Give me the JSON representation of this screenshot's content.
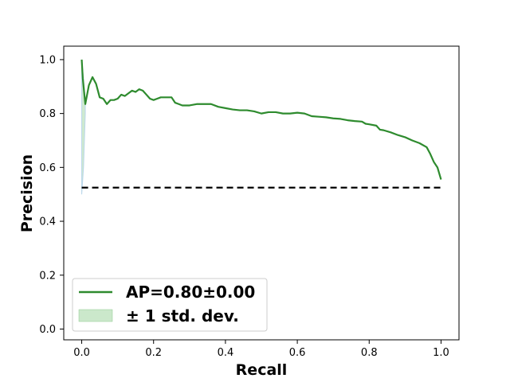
{
  "chart_data": {
    "type": "line",
    "title": "",
    "xlabel": "Recall",
    "ylabel": "Precision",
    "xlim": [
      -0.05,
      1.05
    ],
    "ylim": [
      -0.04,
      1.05
    ],
    "xticks": [
      0.0,
      0.2,
      0.4,
      0.6,
      0.8,
      1.0
    ],
    "xtick_labels": [
      "0.0",
      "0.2",
      "0.4",
      "0.6",
      "0.8",
      "1.0"
    ],
    "yticks": [
      0.0,
      0.2,
      0.4,
      0.6,
      0.8,
      1.0
    ],
    "ytick_labels": [
      "0.0",
      "0.2",
      "0.4",
      "0.6",
      "0.8",
      "1.0"
    ],
    "grid": false,
    "legend": {
      "placement": "lower-left",
      "entries": [
        "AP=0.80±0.00",
        "± 1 std. dev."
      ]
    },
    "series": [
      {
        "name": "AP=0.80±0.00",
        "color": "#2e8b2e",
        "x": [
          0.0,
          0.003,
          0.01,
          0.02,
          0.03,
          0.04,
          0.05,
          0.06,
          0.07,
          0.08,
          0.09,
          0.1,
          0.11,
          0.12,
          0.13,
          0.14,
          0.15,
          0.16,
          0.17,
          0.18,
          0.19,
          0.2,
          0.21,
          0.22,
          0.23,
          0.24,
          0.25,
          0.26,
          0.27,
          0.28,
          0.3,
          0.32,
          0.34,
          0.36,
          0.38,
          0.4,
          0.42,
          0.44,
          0.46,
          0.48,
          0.5,
          0.52,
          0.54,
          0.56,
          0.58,
          0.6,
          0.62,
          0.64,
          0.66,
          0.68,
          0.7,
          0.72,
          0.74,
          0.76,
          0.78,
          0.79,
          0.8,
          0.82,
          0.83,
          0.84,
          0.86,
          0.88,
          0.9,
          0.92,
          0.94,
          0.96,
          0.97,
          0.98,
          0.99,
          1.0
        ],
        "y": [
          1.0,
          0.93,
          0.835,
          0.905,
          0.935,
          0.91,
          0.86,
          0.855,
          0.835,
          0.85,
          0.85,
          0.855,
          0.87,
          0.865,
          0.875,
          0.885,
          0.88,
          0.89,
          0.885,
          0.87,
          0.855,
          0.85,
          0.855,
          0.86,
          0.86,
          0.86,
          0.86,
          0.84,
          0.835,
          0.83,
          0.83,
          0.835,
          0.835,
          0.835,
          0.825,
          0.82,
          0.815,
          0.812,
          0.812,
          0.808,
          0.8,
          0.805,
          0.805,
          0.8,
          0.8,
          0.803,
          0.8,
          0.79,
          0.788,
          0.786,
          0.782,
          0.78,
          0.775,
          0.772,
          0.77,
          0.762,
          0.76,
          0.755,
          0.74,
          0.738,
          0.73,
          0.72,
          0.712,
          0.7,
          0.69,
          0.675,
          0.65,
          0.62,
          0.6,
          0.555
        ]
      },
      {
        "name": "",
        "style": "dashed",
        "color": "#000000",
        "x": [
          0.0,
          1.0
        ],
        "y": [
          0.525,
          0.525
        ]
      }
    ],
    "band": {
      "name": "± 1 std. dev.",
      "color": "#a8d8a8",
      "x": [
        0.0,
        0.005,
        0.01
      ],
      "lower": [
        0.5,
        0.6,
        0.8
      ],
      "upper": [
        1.0,
        0.93,
        0.84
      ]
    }
  }
}
